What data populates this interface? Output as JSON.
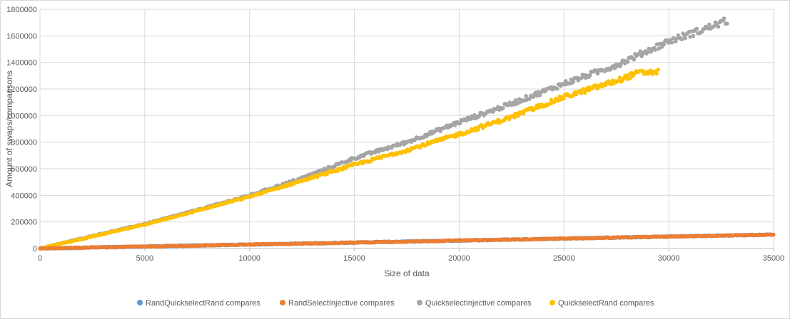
{
  "chart_data": {
    "type": "scatter",
    "title": "",
    "xlabel": "Size of data",
    "ylabel": "Amount of swaps/comparisons",
    "xlim": [
      0,
      35000
    ],
    "ylim": [
      0,
      1800000
    ],
    "x_ticks": [
      0,
      5000,
      10000,
      15000,
      20000,
      25000,
      30000,
      35000
    ],
    "y_ticks": [
      0,
      200000,
      400000,
      600000,
      800000,
      1000000,
      1200000,
      1400000,
      1600000,
      1800000
    ],
    "x_tick_labels": [
      "0",
      "5000",
      "10000",
      "15000",
      "20000",
      "25000",
      "30000",
      "35000"
    ],
    "y_tick_labels": [
      "0",
      "200000",
      "400000",
      "600000",
      "800000",
      "1000000",
      "1200000",
      "1400000",
      "1600000",
      "1800000"
    ],
    "grid": true,
    "legend_position": "bottom",
    "series": [
      {
        "name": "RandQuickselectRand compares",
        "color": "#5b9bd5",
        "x": [
          0,
          35000
        ],
        "y": [
          0,
          105000
        ]
      },
      {
        "name": "RandSelectInjective compares",
        "color": "#ed7d31",
        "x": [
          0,
          2500,
          5000,
          7500,
          10000,
          12500,
          15000,
          17500,
          20000,
          22500,
          25000,
          27500,
          30000,
          32500,
          35000
        ],
        "y": [
          0,
          8000,
          15000,
          22000,
          30000,
          37000,
          45000,
          52000,
          60000,
          67000,
          75000,
          82000,
          90000,
          97000,
          105000
        ]
      },
      {
        "name": "QuickselectInjective compares",
        "color": "#a5a5a5",
        "x": [
          0,
          2500,
          5000,
          7500,
          10000,
          12500,
          15000,
          17500,
          20000,
          22500,
          25000,
          27500,
          30000,
          31500,
          32800
        ],
        "y": [
          0,
          95000,
          185000,
          290000,
          400000,
          530000,
          680000,
          800000,
          950000,
          1090000,
          1240000,
          1380000,
          1560000,
          1640000,
          1715000
        ]
      },
      {
        "name": "QuickselectRand compares",
        "color": "#ffc000",
        "x": [
          0,
          2500,
          5000,
          7500,
          10000,
          12500,
          15000,
          17500,
          20000,
          22500,
          25000,
          27500,
          28500,
          29500
        ],
        "y": [
          0,
          90000,
          180000,
          285000,
          390000,
          510000,
          630000,
          740000,
          860000,
          990000,
          1140000,
          1260000,
          1320000,
          1330000
        ]
      }
    ]
  }
}
